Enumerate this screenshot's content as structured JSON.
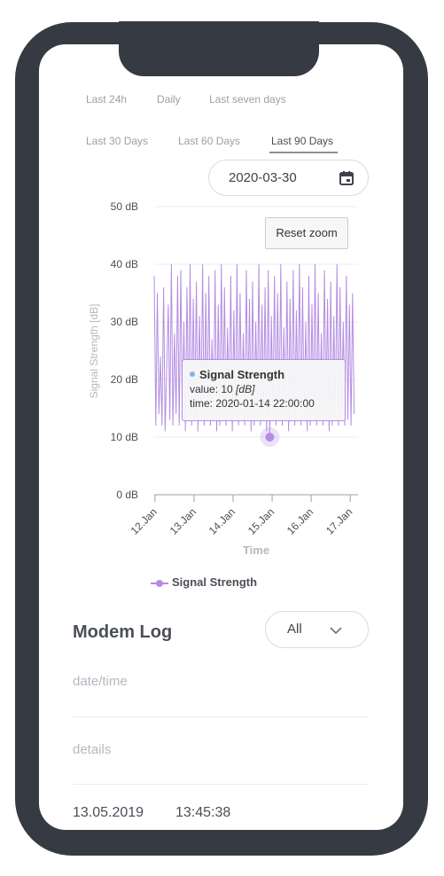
{
  "tabs": [
    {
      "label": "Last 24h"
    },
    {
      "label": "Daily"
    },
    {
      "label": "Last seven days"
    },
    {
      "label": "Last 30 Days"
    },
    {
      "label": "Last 60 Days"
    },
    {
      "label": "Last 90 Days",
      "active": true
    }
  ],
  "date_picker": {
    "value": "2020-03-30",
    "icon": "calendar-icon"
  },
  "reset_zoom_label": "Reset zoom",
  "tooltip": {
    "series": "Signal Strength",
    "value_label": "value:",
    "value": "10",
    "unit": "[dB]",
    "time_label": "time:",
    "time": "2020-01-14 22:00:00"
  },
  "chart_data": {
    "type": "line",
    "ylabel": "Signal Strength [dB]",
    "xlabel": "Time",
    "ylim": [
      0,
      50
    ],
    "yticks": [
      "0 dB",
      "10 dB",
      "20 dB",
      "30 dB",
      "40 dB",
      "50 dB"
    ],
    "xticks": [
      "12.Jan",
      "13.Jan",
      "14.Jan",
      "15.Jan",
      "16.Jan",
      "17.Jan"
    ],
    "xlim": [
      11.98,
      17.2
    ],
    "grid": true,
    "legend": "bottom",
    "series": [
      {
        "name": "Signal Strength",
        "color": "#b48de3",
        "x": [
          11.98,
          12.02,
          12.06,
          12.1,
          12.14,
          12.18,
          12.22,
          12.26,
          12.3,
          12.34,
          12.38,
          12.42,
          12.46,
          12.5,
          12.54,
          12.58,
          12.62,
          12.66,
          12.7,
          12.74,
          12.78,
          12.82,
          12.86,
          12.9,
          12.94,
          12.98,
          13.02,
          13.06,
          13.1,
          13.14,
          13.18,
          13.22,
          13.26,
          13.3,
          13.34,
          13.38,
          13.42,
          13.46,
          13.5,
          13.54,
          13.58,
          13.62,
          13.66,
          13.7,
          13.74,
          13.78,
          13.82,
          13.86,
          13.9,
          13.94,
          13.98,
          14.02,
          14.06,
          14.1,
          14.14,
          14.18,
          14.22,
          14.26,
          14.3,
          14.34,
          14.38,
          14.42,
          14.46,
          14.5,
          14.54,
          14.58,
          14.62,
          14.66,
          14.7,
          14.74,
          14.78,
          14.82,
          14.86,
          14.9,
          14.94,
          14.98,
          15.02,
          15.06,
          15.1,
          15.14,
          15.18,
          15.22,
          15.26,
          15.3,
          15.34,
          15.38,
          15.42,
          15.46,
          15.5,
          15.54,
          15.58,
          15.62,
          15.66,
          15.7,
          15.74,
          15.78,
          15.82,
          15.86,
          15.9,
          15.94,
          15.98,
          16.02,
          16.06,
          16.1,
          16.14,
          16.18,
          16.22,
          16.26,
          16.3,
          16.34,
          16.38,
          16.42,
          16.46,
          16.5,
          16.54,
          16.58,
          16.62,
          16.66,
          16.7,
          16.74,
          16.78,
          16.82,
          16.86,
          16.9,
          16.94,
          16.98,
          17.02,
          17.06,
          17.1
        ],
        "y": [
          38,
          12,
          35,
          14,
          24,
          12,
          36,
          11,
          22,
          33,
          13,
          40,
          12,
          28,
          14,
          38,
          12,
          39,
          13,
          30,
          11,
          36,
          14,
          40,
          12,
          34,
          13,
          37,
          11,
          31,
          14,
          40,
          12,
          35,
          13,
          38,
          12,
          27,
          14,
          39,
          11,
          33,
          12,
          40,
          13,
          36,
          12,
          29,
          14,
          38,
          11,
          32,
          13,
          40,
          12,
          35,
          14,
          28,
          12,
          39,
          13,
          34,
          11,
          37,
          12,
          30,
          14,
          40,
          12,
          33,
          13,
          36,
          11,
          39,
          10,
          31,
          14,
          38,
          12,
          35,
          13,
          40,
          12,
          29,
          14,
          37,
          11,
          34,
          13,
          39,
          12,
          32,
          14,
          40,
          12,
          36,
          13,
          30,
          11,
          38,
          12,
          33,
          14,
          40,
          12,
          35,
          13,
          28,
          12,
          39,
          14,
          34,
          11,
          37,
          12,
          31,
          13,
          40,
          12,
          36,
          14,
          30,
          12,
          38,
          13,
          33,
          12,
          35,
          14
        ]
      }
    ],
    "highlight_point": {
      "x": 14.94,
      "y": 10
    }
  },
  "modem_log": {
    "title": "Modem Log",
    "filter_value": "All",
    "date_time_label": "date/time",
    "details_label": "details",
    "rows": [
      {
        "date": "13.05.2019",
        "time": "13:45:38"
      }
    ]
  }
}
